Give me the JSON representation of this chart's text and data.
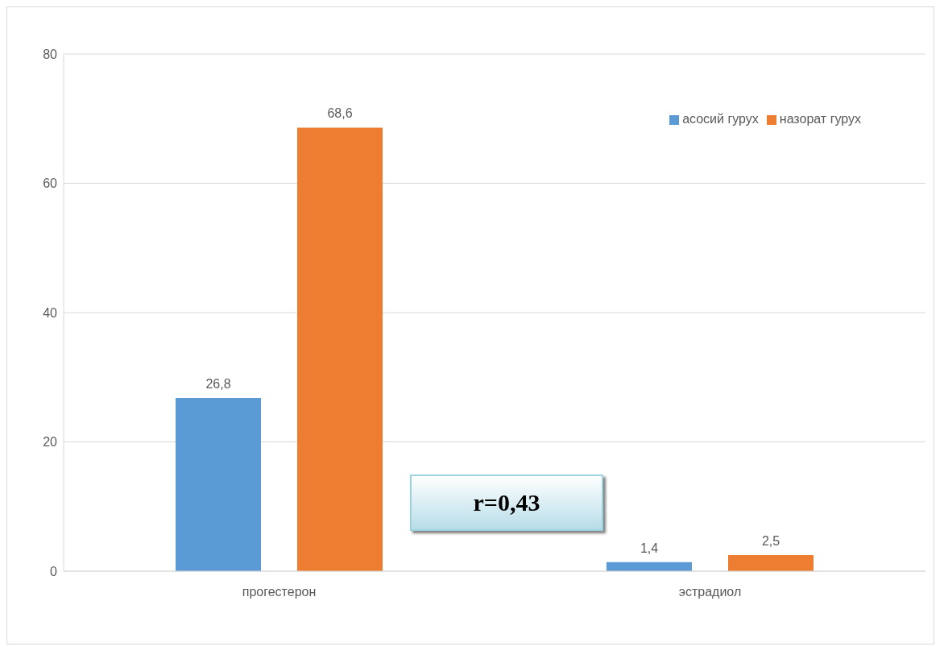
{
  "chart_data": {
    "type": "bar",
    "categories": [
      "прогестерон",
      "эстрадиол"
    ],
    "series": [
      {
        "name": "асосий гурух",
        "color": "#5b9bd5",
        "values": [
          26.8,
          1.4
        ],
        "value_labels": [
          "26,8",
          "1,4"
        ]
      },
      {
        "name": "назорат гурух",
        "color": "#ed7d31",
        "values": [
          68.6,
          2.5
        ],
        "value_labels": [
          "68,6",
          "2,5"
        ]
      }
    ],
    "ylim": [
      0,
      80
    ],
    "yticks": [
      0,
      20,
      40,
      60,
      80
    ],
    "grid": "y",
    "legend": "top right",
    "annotations": [
      "r=0,43"
    ]
  }
}
